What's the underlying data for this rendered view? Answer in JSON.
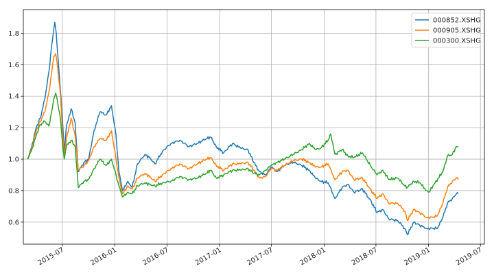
{
  "chart_data": {
    "type": "line",
    "title": "",
    "xlabel": "",
    "ylabel": "",
    "grid": true,
    "legend_position": "top-right",
    "ylim": [
      0.46,
      1.95
    ],
    "xlim": [
      "2015-02-15",
      "2019-07-15"
    ],
    "x_ticks": [
      "2015-07",
      "2016-01",
      "2016-07",
      "2017-01",
      "2017-07",
      "2018-01",
      "2018-07",
      "2019-01",
      "2019-07"
    ],
    "y_ticks": [
      "0.6",
      "0.8",
      "1.0",
      "1.2",
      "1.4",
      "1.6",
      "1.8"
    ],
    "series": [
      {
        "name": "000852.XSHG",
        "color": "#1f77b4",
        "points": [
          [
            "2015-03-01",
            1.0
          ],
          [
            "2015-03-15",
            1.07
          ],
          [
            "2015-04-01",
            1.2
          ],
          [
            "2015-04-15",
            1.26
          ],
          [
            "2015-05-01",
            1.38
          ],
          [
            "2015-05-15",
            1.55
          ],
          [
            "2015-05-25",
            1.72
          ],
          [
            "2015-06-01",
            1.82
          ],
          [
            "2015-06-05",
            1.87
          ],
          [
            "2015-06-10",
            1.8
          ],
          [
            "2015-06-20",
            1.55
          ],
          [
            "2015-07-01",
            1.28
          ],
          [
            "2015-07-08",
            1.05
          ],
          [
            "2015-07-15",
            1.2
          ],
          [
            "2015-08-01",
            1.32
          ],
          [
            "2015-08-15",
            1.23
          ],
          [
            "2015-08-26",
            0.92
          ],
          [
            "2015-09-15",
            0.98
          ],
          [
            "2015-10-01",
            1.0
          ],
          [
            "2015-10-20",
            1.18
          ],
          [
            "2015-11-10",
            1.3
          ],
          [
            "2015-12-01",
            1.28
          ],
          [
            "2015-12-20",
            1.34
          ],
          [
            "2016-01-05",
            1.15
          ],
          [
            "2016-01-15",
            0.92
          ],
          [
            "2016-01-28",
            0.8
          ],
          [
            "2016-02-15",
            0.86
          ],
          [
            "2016-03-01",
            0.82
          ],
          [
            "2016-03-20",
            0.97
          ],
          [
            "2016-04-15",
            1.03
          ],
          [
            "2016-05-01",
            1.01
          ],
          [
            "2016-05-20",
            0.97
          ],
          [
            "2016-06-15",
            1.05
          ],
          [
            "2016-07-15",
            1.1
          ],
          [
            "2016-08-15",
            1.12
          ],
          [
            "2016-09-15",
            1.08
          ],
          [
            "2016-10-15",
            1.1
          ],
          [
            "2016-11-15",
            1.13
          ],
          [
            "2016-12-01",
            1.14
          ],
          [
            "2016-12-20",
            1.08
          ],
          [
            "2017-01-15",
            1.04
          ],
          [
            "2017-02-15",
            1.1
          ],
          [
            "2017-03-15",
            1.07
          ],
          [
            "2017-04-10",
            1.06
          ],
          [
            "2017-04-30",
            0.98
          ],
          [
            "2017-05-20",
            0.92
          ],
          [
            "2017-06-10",
            0.9
          ],
          [
            "2017-07-01",
            0.95
          ],
          [
            "2017-07-20",
            0.92
          ],
          [
            "2017-08-15",
            0.96
          ],
          [
            "2017-09-15",
            0.98
          ],
          [
            "2017-10-15",
            0.96
          ],
          [
            "2017-11-10",
            0.93
          ],
          [
            "2017-12-01",
            0.88
          ],
          [
            "2017-12-20",
            0.86
          ],
          [
            "2018-01-15",
            0.85
          ],
          [
            "2018-02-08",
            0.75
          ],
          [
            "2018-03-05",
            0.82
          ],
          [
            "2018-03-25",
            0.84
          ],
          [
            "2018-04-15",
            0.79
          ],
          [
            "2018-05-15",
            0.81
          ],
          [
            "2018-06-15",
            0.73
          ],
          [
            "2018-07-05",
            0.66
          ],
          [
            "2018-07-25",
            0.68
          ],
          [
            "2018-08-15",
            0.62
          ],
          [
            "2018-09-15",
            0.61
          ],
          [
            "2018-10-10",
            0.56
          ],
          [
            "2018-10-19",
            0.52
          ],
          [
            "2018-11-10",
            0.6
          ],
          [
            "2018-12-01",
            0.58
          ],
          [
            "2018-12-25",
            0.56
          ],
          [
            "2019-01-15",
            0.56
          ],
          [
            "2019-02-01",
            0.56
          ],
          [
            "2019-02-20",
            0.63
          ],
          [
            "2019-03-08",
            0.72
          ],
          [
            "2019-03-25",
            0.75
          ],
          [
            "2019-04-08",
            0.78
          ],
          [
            "2019-04-15",
            0.78
          ]
        ]
      },
      {
        "name": "000905.XSHG",
        "color": "#ff7f0e",
        "points": [
          [
            "2015-03-01",
            1.0
          ],
          [
            "2015-03-15",
            1.06
          ],
          [
            "2015-04-01",
            1.18
          ],
          [
            "2015-04-15",
            1.24
          ],
          [
            "2015-05-01",
            1.3
          ],
          [
            "2015-05-15",
            1.42
          ],
          [
            "2015-05-25",
            1.55
          ],
          [
            "2015-06-01",
            1.65
          ],
          [
            "2015-06-08",
            1.67
          ],
          [
            "2015-06-15",
            1.58
          ],
          [
            "2015-06-25",
            1.4
          ],
          [
            "2015-07-01",
            1.2
          ],
          [
            "2015-07-08",
            1.02
          ],
          [
            "2015-07-15",
            1.12
          ],
          [
            "2015-08-01",
            1.26
          ],
          [
            "2015-08-15",
            1.15
          ],
          [
            "2015-08-26",
            0.93
          ],
          [
            "2015-09-15",
            0.96
          ],
          [
            "2015-10-01",
            0.99
          ],
          [
            "2015-10-20",
            1.08
          ],
          [
            "2015-11-10",
            1.13
          ],
          [
            "2015-12-01",
            1.12
          ],
          [
            "2015-12-20",
            1.18
          ],
          [
            "2016-01-05",
            1.0
          ],
          [
            "2016-01-15",
            0.88
          ],
          [
            "2016-01-28",
            0.78
          ],
          [
            "2016-02-15",
            0.83
          ],
          [
            "2016-03-01",
            0.81
          ],
          [
            "2016-03-20",
            0.88
          ],
          [
            "2016-04-15",
            0.91
          ],
          [
            "2016-05-01",
            0.89
          ],
          [
            "2016-05-20",
            0.86
          ],
          [
            "2016-06-15",
            0.9
          ],
          [
            "2016-07-15",
            0.94
          ],
          [
            "2016-08-15",
            0.97
          ],
          [
            "2016-09-15",
            0.94
          ],
          [
            "2016-10-15",
            0.97
          ],
          [
            "2016-11-15",
            1.0
          ],
          [
            "2016-12-01",
            1.01
          ],
          [
            "2016-12-20",
            0.96
          ],
          [
            "2017-01-15",
            0.93
          ],
          [
            "2017-02-15",
            0.97
          ],
          [
            "2017-03-15",
            0.97
          ],
          [
            "2017-04-10",
            0.98
          ],
          [
            "2017-04-30",
            0.93
          ],
          [
            "2017-05-20",
            0.88
          ],
          [
            "2017-06-10",
            0.89
          ],
          [
            "2017-07-01",
            0.94
          ],
          [
            "2017-07-20",
            0.93
          ],
          [
            "2017-08-15",
            0.96
          ],
          [
            "2017-09-15",
            0.99
          ],
          [
            "2017-10-15",
            1.0
          ],
          [
            "2017-11-10",
            0.98
          ],
          [
            "2017-12-01",
            0.95
          ],
          [
            "2017-12-20",
            0.95
          ],
          [
            "2018-01-15",
            0.97
          ],
          [
            "2018-02-08",
            0.87
          ],
          [
            "2018-03-05",
            0.92
          ],
          [
            "2018-03-25",
            0.93
          ],
          [
            "2018-04-15",
            0.87
          ],
          [
            "2018-05-15",
            0.88
          ],
          [
            "2018-06-15",
            0.8
          ],
          [
            "2018-07-05",
            0.75
          ],
          [
            "2018-07-25",
            0.78
          ],
          [
            "2018-08-15",
            0.72
          ],
          [
            "2018-09-15",
            0.72
          ],
          [
            "2018-10-10",
            0.67
          ],
          [
            "2018-10-19",
            0.61
          ],
          [
            "2018-11-10",
            0.68
          ],
          [
            "2018-12-01",
            0.66
          ],
          [
            "2018-12-25",
            0.63
          ],
          [
            "2019-01-15",
            0.63
          ],
          [
            "2019-02-01",
            0.64
          ],
          [
            "2019-02-20",
            0.72
          ],
          [
            "2019-03-08",
            0.82
          ],
          [
            "2019-03-25",
            0.86
          ],
          [
            "2019-04-08",
            0.88
          ],
          [
            "2019-04-15",
            0.87
          ]
        ]
      },
      {
        "name": "000300.XSHG",
        "color": "#2ca02c",
        "points": [
          [
            "2015-03-01",
            1.0
          ],
          [
            "2015-03-15",
            1.05
          ],
          [
            "2015-04-01",
            1.15
          ],
          [
            "2015-04-15",
            1.22
          ],
          [
            "2015-05-01",
            1.24
          ],
          [
            "2015-05-15",
            1.21
          ],
          [
            "2015-05-25",
            1.3
          ],
          [
            "2015-06-01",
            1.38
          ],
          [
            "2015-06-08",
            1.42
          ],
          [
            "2015-06-15",
            1.36
          ],
          [
            "2015-06-25",
            1.25
          ],
          [
            "2015-07-01",
            1.12
          ],
          [
            "2015-07-08",
            1.0
          ],
          [
            "2015-07-15",
            1.08
          ],
          [
            "2015-08-01",
            1.12
          ],
          [
            "2015-08-15",
            1.08
          ],
          [
            "2015-08-26",
            0.82
          ],
          [
            "2015-09-15",
            0.86
          ],
          [
            "2015-10-01",
            0.87
          ],
          [
            "2015-10-20",
            0.94
          ],
          [
            "2015-11-10",
            1.0
          ],
          [
            "2015-12-01",
            0.96
          ],
          [
            "2015-12-20",
            1.0
          ],
          [
            "2016-01-05",
            0.9
          ],
          [
            "2016-01-15",
            0.83
          ],
          [
            "2016-01-28",
            0.76
          ],
          [
            "2016-02-15",
            0.79
          ],
          [
            "2016-03-01",
            0.78
          ],
          [
            "2016-03-20",
            0.83
          ],
          [
            "2016-04-15",
            0.85
          ],
          [
            "2016-05-01",
            0.84
          ],
          [
            "2016-05-20",
            0.83
          ],
          [
            "2016-06-15",
            0.85
          ],
          [
            "2016-07-15",
            0.86
          ],
          [
            "2016-08-15",
            0.89
          ],
          [
            "2016-09-15",
            0.87
          ],
          [
            "2016-10-15",
            0.88
          ],
          [
            "2016-11-15",
            0.91
          ],
          [
            "2016-12-01",
            0.93
          ],
          [
            "2016-12-20",
            0.88
          ],
          [
            "2017-01-15",
            0.9
          ],
          [
            "2017-02-15",
            0.93
          ],
          [
            "2017-03-15",
            0.93
          ],
          [
            "2017-04-10",
            0.94
          ],
          [
            "2017-04-30",
            0.91
          ],
          [
            "2017-05-20",
            0.9
          ],
          [
            "2017-06-10",
            0.93
          ],
          [
            "2017-07-01",
            0.96
          ],
          [
            "2017-07-20",
            0.98
          ],
          [
            "2017-08-15",
            1.0
          ],
          [
            "2017-09-15",
            1.03
          ],
          [
            "2017-10-15",
            1.06
          ],
          [
            "2017-11-10",
            1.1
          ],
          [
            "2017-12-01",
            1.06
          ],
          [
            "2017-12-20",
            1.07
          ],
          [
            "2018-01-15",
            1.12
          ],
          [
            "2018-01-24",
            1.16
          ],
          [
            "2018-02-08",
            1.03
          ],
          [
            "2018-03-05",
            1.06
          ],
          [
            "2018-03-25",
            1.02
          ],
          [
            "2018-04-15",
            1.01
          ],
          [
            "2018-05-15",
            1.04
          ],
          [
            "2018-06-15",
            0.95
          ],
          [
            "2018-07-05",
            0.9
          ],
          [
            "2018-07-25",
            0.93
          ],
          [
            "2018-08-15",
            0.87
          ],
          [
            "2018-09-15",
            0.88
          ],
          [
            "2018-10-10",
            0.83
          ],
          [
            "2018-10-19",
            0.82
          ],
          [
            "2018-11-10",
            0.86
          ],
          [
            "2018-12-01",
            0.85
          ],
          [
            "2018-12-25",
            0.8
          ],
          [
            "2019-01-03",
            0.79
          ],
          [
            "2019-01-20",
            0.84
          ],
          [
            "2019-02-20",
            0.92
          ],
          [
            "2019-03-08",
            1.02
          ],
          [
            "2019-03-25",
            1.03
          ],
          [
            "2019-04-08",
            1.08
          ],
          [
            "2019-04-15",
            1.08
          ]
        ]
      }
    ]
  }
}
